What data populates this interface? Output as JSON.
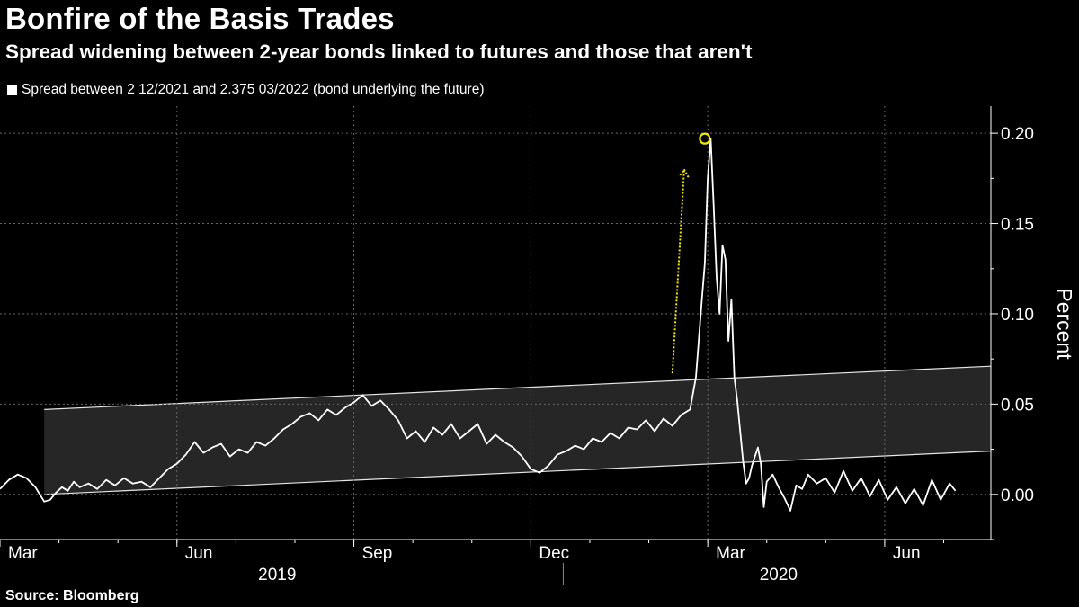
{
  "header": {
    "title": "Bonfire of the Basis Trades",
    "subtitle": "Spread widening between 2-year bonds linked to futures and those that aren't"
  },
  "footer": {
    "source": "Source: Bloomberg"
  },
  "colors": {
    "background": "#000000",
    "series": "#ffffff",
    "annotation": "#f5e60a",
    "band": "#262626",
    "grid": "#666666"
  },
  "chart_data": {
    "type": "line",
    "title": "Bonfire of the Basis Trades",
    "subtitle": "Spread widening between 2-year bonds linked to futures and those that aren't",
    "ylabel": "Percent",
    "xlabel": "",
    "ylim": [
      -0.025,
      0.215
    ],
    "y_ticks": [
      {
        "value": 0.0,
        "label": "0.00"
      },
      {
        "value": 0.05,
        "label": "0.05"
      },
      {
        "value": 0.1,
        "label": "0.10"
      },
      {
        "value": 0.15,
        "label": "0.15"
      },
      {
        "value": 0.2,
        "label": "0.20"
      }
    ],
    "x_range_months": [
      0,
      16.8
    ],
    "x_ticks": [
      {
        "month": 0,
        "label": "Mar"
      },
      {
        "month": 3,
        "label": "Jun"
      },
      {
        "month": 6,
        "label": "Sep"
      },
      {
        "month": 9,
        "label": "Dec"
      },
      {
        "month": 12,
        "label": "Mar"
      },
      {
        "month": 15,
        "label": "Jun"
      }
    ],
    "years": [
      {
        "label": "2019",
        "center_month": 4.7
      },
      {
        "label": "2020",
        "center_month": 13.2
      }
    ],
    "year_divider_month": 9.55,
    "series": [
      {
        "name": "Spread between 2 12/2021 and 2.375 03/2022 (bond underlying the future)",
        "color": "#ffffff",
        "x": [
          0.0,
          0.15,
          0.3,
          0.45,
          0.6,
          0.75,
          0.85,
          0.95,
          1.05,
          1.15,
          1.25,
          1.35,
          1.5,
          1.65,
          1.8,
          1.95,
          2.1,
          2.25,
          2.4,
          2.55,
          2.7,
          2.85,
          3.0,
          3.15,
          3.3,
          3.45,
          3.6,
          3.75,
          3.9,
          4.05,
          4.2,
          4.35,
          4.5,
          4.65,
          4.8,
          4.95,
          5.1,
          5.25,
          5.4,
          5.55,
          5.7,
          5.85,
          6.0,
          6.15,
          6.3,
          6.45,
          6.6,
          6.75,
          6.9,
          7.05,
          7.2,
          7.35,
          7.5,
          7.65,
          7.8,
          7.95,
          8.1,
          8.25,
          8.4,
          8.55,
          8.7,
          8.85,
          9.0,
          9.15,
          9.3,
          9.45,
          9.6,
          9.75,
          9.9,
          10.05,
          10.2,
          10.35,
          10.5,
          10.65,
          10.8,
          10.95,
          11.1,
          11.25,
          11.4,
          11.55,
          11.7,
          11.8,
          11.9,
          11.95,
          12.0,
          12.05,
          12.1,
          12.15,
          12.2,
          12.25,
          12.3,
          12.35,
          12.4,
          12.45,
          12.5,
          12.55,
          12.6,
          12.65,
          12.7,
          12.75,
          12.8,
          12.85,
          12.9,
          12.95,
          13.0,
          13.1,
          13.2,
          13.3,
          13.4,
          13.5,
          13.6,
          13.7,
          13.85,
          14.0,
          14.15,
          14.3,
          14.45,
          14.6,
          14.75,
          14.9,
          15.05,
          15.2,
          15.35,
          15.5,
          15.65,
          15.8,
          15.95,
          16.1,
          16.2
        ],
        "y": [
          0.003,
          0.008,
          0.011,
          0.009,
          0.004,
          -0.004,
          -0.003,
          0.001,
          0.004,
          0.002,
          0.007,
          0.004,
          0.006,
          0.003,
          0.008,
          0.005,
          0.009,
          0.006,
          0.007,
          0.004,
          0.009,
          0.014,
          0.017,
          0.022,
          0.029,
          0.023,
          0.026,
          0.028,
          0.021,
          0.025,
          0.023,
          0.029,
          0.027,
          0.031,
          0.036,
          0.039,
          0.043,
          0.045,
          0.041,
          0.047,
          0.044,
          0.048,
          0.051,
          0.055,
          0.049,
          0.052,
          0.047,
          0.041,
          0.031,
          0.035,
          0.029,
          0.037,
          0.033,
          0.039,
          0.031,
          0.035,
          0.039,
          0.028,
          0.033,
          0.029,
          0.026,
          0.021,
          0.014,
          0.012,
          0.016,
          0.022,
          0.024,
          0.027,
          0.025,
          0.031,
          0.029,
          0.034,
          0.031,
          0.037,
          0.036,
          0.041,
          0.035,
          0.042,
          0.038,
          0.044,
          0.047,
          0.065,
          0.108,
          0.128,
          0.175,
          0.197,
          0.16,
          0.12,
          0.1,
          0.138,
          0.13,
          0.085,
          0.108,
          0.065,
          0.052,
          0.035,
          0.018,
          0.006,
          0.009,
          0.016,
          0.021,
          0.026,
          0.017,
          -0.007,
          0.007,
          0.011,
          0.004,
          -0.002,
          -0.009,
          0.005,
          0.003,
          0.011,
          0.006,
          0.009,
          0.001,
          0.013,
          0.002,
          0.009,
          -0.001,
          0.008,
          -0.003,
          0.004,
          -0.005,
          0.003,
          -0.006,
          0.008,
          -0.003,
          0.006,
          0.002
        ]
      }
    ],
    "channel_band": {
      "x_start": 0.75,
      "x_end": 16.8,
      "upper": [
        0.047,
        0.071
      ],
      "lower": [
        0.0,
        0.024
      ]
    },
    "annotations": [
      {
        "type": "arrow",
        "color": "#f5e60a",
        "style": "dotted",
        "from": {
          "month": 11.4,
          "value": 0.067
        },
        "to": {
          "month": 11.6,
          "value": 0.18
        }
      },
      {
        "type": "circle",
        "color": "#f5e60a",
        "at": {
          "month": 11.95,
          "value": 0.197
        }
      }
    ]
  }
}
